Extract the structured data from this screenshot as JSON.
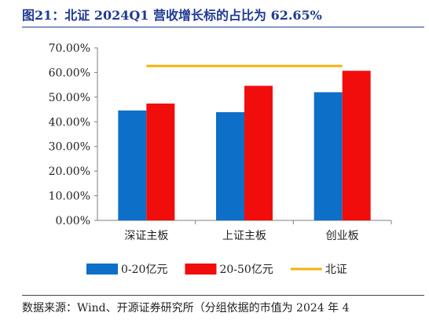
{
  "title": "图21：北证 2024Q1 营收增长标的占比为 62.65%",
  "source": "数据来源：Wind、开源证券研究所（分组依据的市值为 2024 年 4",
  "colors": {
    "title": "#1f3a93",
    "series_small": "#0d6fc8",
    "series_mid": "#f20d0d",
    "line_beizheng": "#f2b20d"
  },
  "chart_data": {
    "type": "bar",
    "categories": [
      "深证主板",
      "上证主板",
      "创业板"
    ],
    "series": [
      {
        "name": "0-20亿元",
        "type": "bar",
        "color": "#0d6fc8",
        "values": [
          0.446,
          0.439,
          0.52
        ]
      },
      {
        "name": "20-50亿元",
        "type": "bar",
        "color": "#f20d0d",
        "values": [
          0.474,
          0.546,
          0.607
        ]
      },
      {
        "name": "北证",
        "type": "line",
        "color": "#f2b20d",
        "values": [
          0.6265,
          0.6265,
          0.6265
        ]
      }
    ],
    "yticks": [
      "0.00%",
      "10.00%",
      "20.00%",
      "30.00%",
      "40.00%",
      "50.00%",
      "60.00%",
      "70.00%"
    ],
    "ylim": [
      0,
      0.7
    ],
    "grid": false,
    "legend_position": "bottom"
  }
}
